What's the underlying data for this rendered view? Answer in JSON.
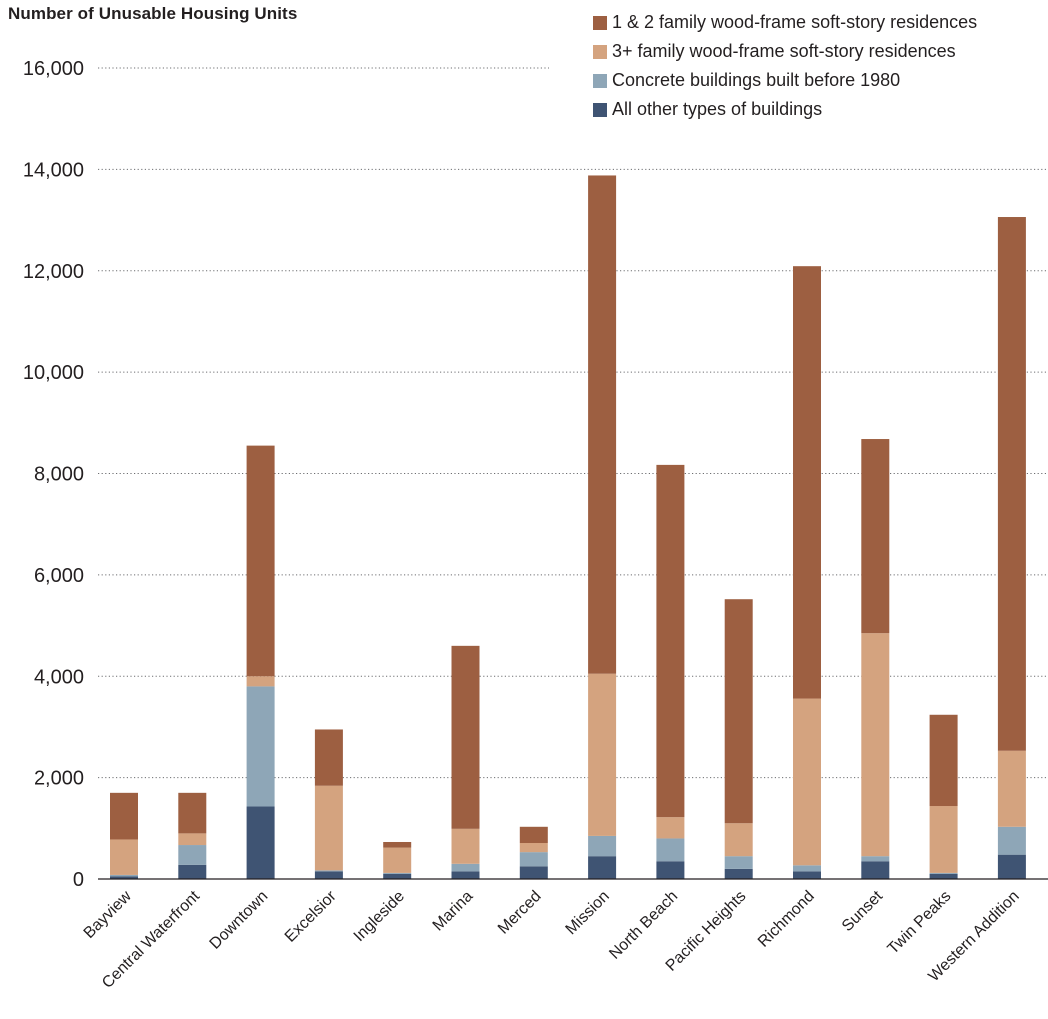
{
  "chart_data": {
    "type": "bar",
    "stacked": true,
    "title": "Number of Unusable Housing Units",
    "xlabel": "",
    "ylabel": "",
    "ylim": [
      0,
      16000
    ],
    "yticks": [
      0,
      2000,
      4000,
      6000,
      8000,
      10000,
      12000,
      14000,
      16000
    ],
    "ytick_labels": [
      "0",
      "2,000",
      "4,000",
      "6,000",
      "8,000",
      "10,000",
      "12,000",
      "14,000",
      "16,000"
    ],
    "grid": "horizontal dotted",
    "legend_position": "top-right",
    "categories": [
      "Bayview",
      "Central Waterfront",
      "Downtown",
      "Excelsior",
      "Ingleside",
      "Marina",
      "Merced",
      "Mission",
      "North Beach",
      "Pacific Heights",
      "Richmond",
      "Sunset",
      "Twin Peaks",
      "Western Addition"
    ],
    "series": [
      {
        "name": "All other types of buildings",
        "color": "#3f5473",
        "values": [
          50,
          280,
          1430,
          150,
          100,
          150,
          250,
          450,
          350,
          200,
          150,
          350,
          100,
          480
        ]
      },
      {
        "name": "Concrete buildings built before 1980",
        "color": "#8ea6b7",
        "values": [
          30,
          390,
          2370,
          20,
          20,
          150,
          280,
          400,
          450,
          250,
          120,
          100,
          20,
          550
        ]
      },
      {
        "name": "3+ family wood-frame soft-story residences",
        "color": "#d4a37f",
        "values": [
          700,
          230,
          200,
          1670,
          500,
          690,
          180,
          3200,
          420,
          650,
          3290,
          4400,
          1320,
          1500
        ]
      },
      {
        "name": "1 & 2 family wood-frame soft-story residences",
        "color": "#9d5f41",
        "values": [
          920,
          800,
          4550,
          1110,
          110,
          3610,
          320,
          9830,
          6950,
          4420,
          8530,
          3830,
          1800,
          10530
        ]
      }
    ]
  },
  "legend": {
    "items": [
      {
        "label": "1 & 2 family wood-frame soft-story residences",
        "color": "#9d5f41"
      },
      {
        "label": "3+ family wood-frame soft-story residences",
        "color": "#d4a37f"
      },
      {
        "label": "Concrete buildings built before 1980",
        "color": "#8ea6b7"
      },
      {
        "label": "All other types of buildings",
        "color": "#3f5473"
      }
    ]
  }
}
